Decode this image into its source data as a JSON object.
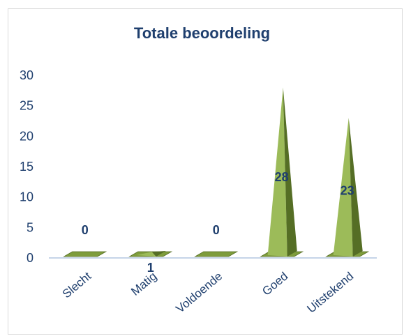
{
  "chart_data": {
    "type": "bar",
    "style": "3d-pyramid",
    "title": "Totale beoordeling",
    "categories": [
      "Slecht",
      "Matig",
      "Voldoende",
      "Goed",
      "Uitstekend"
    ],
    "values": [
      0,
      1,
      0,
      28,
      23
    ],
    "data_labels": [
      "0",
      "1",
      "0",
      "28",
      "23"
    ],
    "ylim": [
      0,
      30
    ],
    "yticks": [
      0,
      5,
      10,
      15,
      20,
      25,
      30
    ],
    "xlabel": "",
    "ylabel": "",
    "grid": false,
    "legend": "none",
    "colors": {
      "light": "#9cbb59",
      "mid": "#7e9c3c",
      "dark": "#556e25",
      "text": "#1f3f6e",
      "axis": "#c6d4e8"
    }
  }
}
